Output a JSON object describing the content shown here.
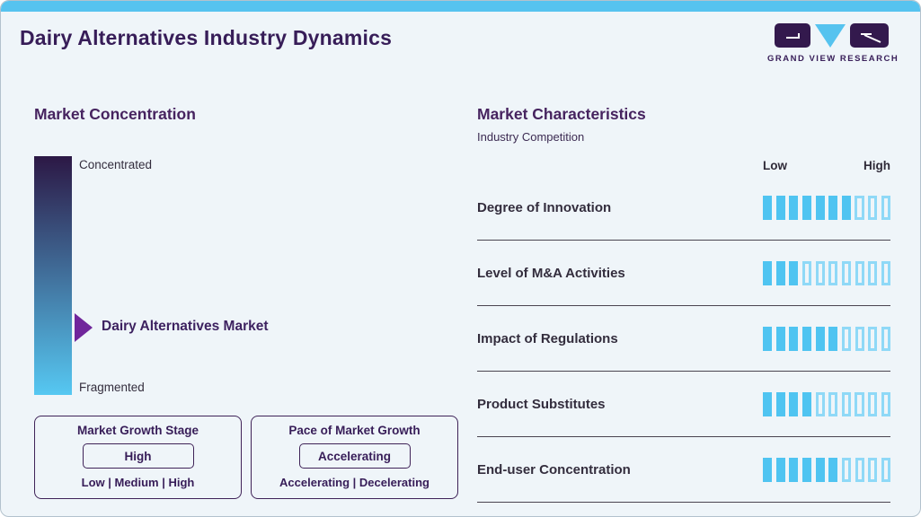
{
  "page": {
    "title": "Dairy Alternatives Industry Dynamics"
  },
  "logo": {
    "brand": "GRAND VIEW RESEARCH"
  },
  "theme": {
    "accent_blue": "#56c3ef",
    "purple_dark": "#371d58",
    "purple_mid": "#70269b",
    "text_dark": "#332d3d",
    "bar_gradient_top": "#2c1845",
    "bar_gradient_bottom": "#56c8f2",
    "segment_filled": "#4fc4f1",
    "segment_empty_border": "#8fd9f7",
    "background": "#eff5f9"
  },
  "market_concentration": {
    "heading": "Market Concentration",
    "top_label": "Concentrated",
    "bottom_label": "Fragmented",
    "pointer_label": "Dairy Alternatives Market"
  },
  "growth_stage_box": {
    "title": "Market Growth Stage",
    "value": "High",
    "scale": "Low | Medium | High"
  },
  "pace_box": {
    "title": "Pace of Market Growth",
    "value": "Accelerating",
    "scale": "Accelerating | Decelerating"
  },
  "market_characteristics": {
    "heading": "Market Characteristics",
    "subtitle": "Industry Competition",
    "scale_low": "Low",
    "scale_high": "High",
    "segment_total": 10,
    "rows": [
      {
        "label": "Degree of Innovation",
        "filled": 7
      },
      {
        "label": "Level of M&A Activities",
        "filled": 3
      },
      {
        "label": "Impact of Regulations",
        "filled": 6
      },
      {
        "label": "Product Substitutes",
        "filled": 4
      },
      {
        "label": "End-user Concentration",
        "filled": 6
      }
    ]
  },
  "chart_data": {
    "type": "bar",
    "orientation": "horizontal",
    "title": "Market Characteristics - Industry Competition",
    "categories": [
      "Degree of Innovation",
      "Level of M&A Activities",
      "Impact of Regulations",
      "Product Substitutes",
      "End-user Concentration"
    ],
    "values": [
      7,
      3,
      6,
      4,
      6
    ],
    "value_range": [
      0,
      10
    ],
    "scale_labels": {
      "min": "Low",
      "max": "High"
    },
    "annotations": {
      "market_concentration_scale": [
        "Concentrated",
        "Fragmented"
      ],
      "market_position_pointer": "Dairy Alternatives Market",
      "market_growth_stage": "High",
      "pace_of_market_growth": "Accelerating"
    }
  }
}
